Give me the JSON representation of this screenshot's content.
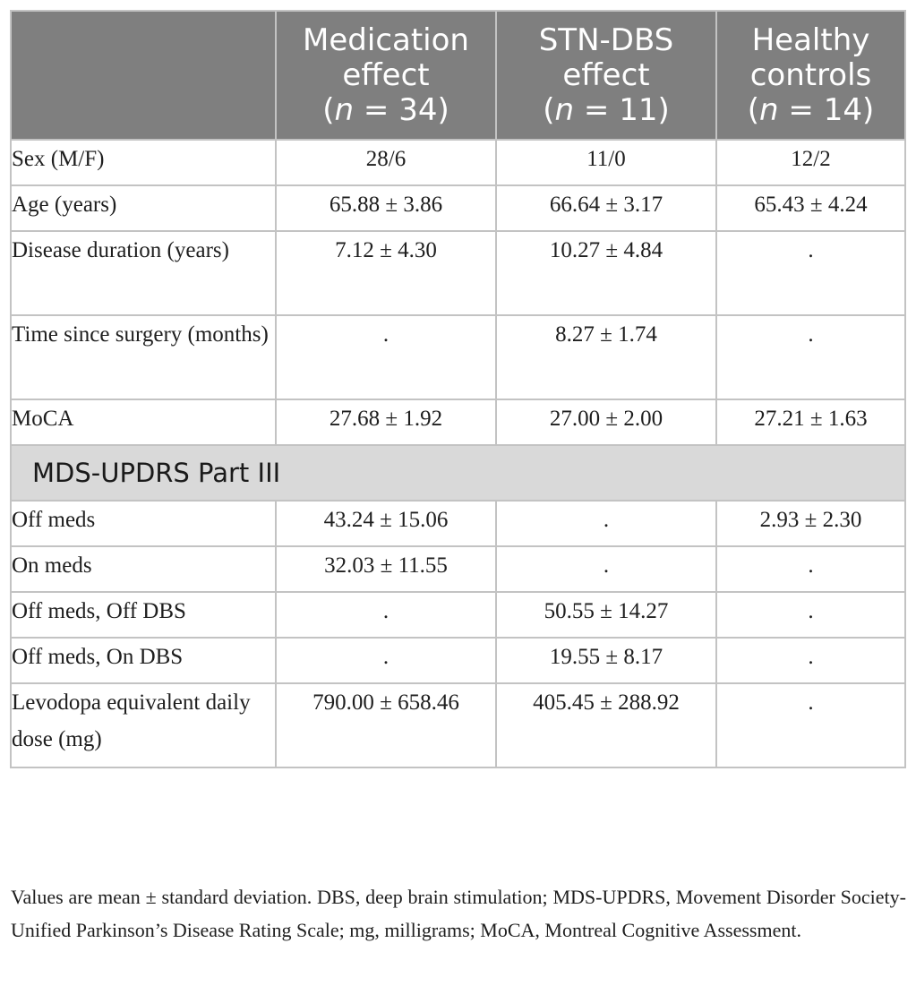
{
  "table": {
    "headers": [
      {
        "line1": "",
        "line2": "",
        "n_italic": "",
        "n_rest": ""
      },
      {
        "line1": "Medication",
        "line2": "effect",
        "n_italic": "n",
        "n_rest": " = 34"
      },
      {
        "line1": "STN-DBS",
        "line2": "effect",
        "n_italic": "n",
        "n_rest": " = 11"
      },
      {
        "line1": "Healthy",
        "line2": "controls",
        "n_italic": "n",
        "n_rest": " = 14"
      }
    ],
    "rows": [
      {
        "label": "Sex (M/F)",
        "values": [
          "28/6",
          "11/0",
          "12/2"
        ]
      },
      {
        "label": "Age (years)",
        "values": [
          "65.88 ± 3.86",
          "66.64 ± 3.17",
          "65.43 ± 4.24"
        ]
      },
      {
        "label": "Disease duration (years)",
        "values": [
          "7.12 ± 4.30",
          "10.27 ± 4.84",
          "."
        ]
      },
      {
        "label": "Time since surgery (months)",
        "values": [
          ".",
          "8.27 ± 1.74",
          "."
        ]
      },
      {
        "label": "MoCA",
        "values": [
          "27.68 ± 1.92",
          "27.00 ± 2.00",
          "27.21 ± 1.63"
        ]
      },
      {
        "section": "MDS-UPDRS Part III"
      },
      {
        "label": "Off meds",
        "values": [
          "43.24 ± 15.06",
          ".",
          "2.93 ± 2.30"
        ]
      },
      {
        "label": "On meds",
        "values": [
          "32.03 ± 11.55",
          ".",
          "."
        ]
      },
      {
        "label": "Off meds, Off DBS",
        "values": [
          ".",
          "50.55 ± 14.27",
          "."
        ]
      },
      {
        "label": "Off meds, On DBS",
        "values": [
          ".",
          "19.55 ± 8.17",
          "."
        ]
      },
      {
        "label": "Levodopa equivalent daily dose (mg)",
        "values": [
          "790.00 ± 658.46",
          "405.45 ± 288.92",
          "."
        ]
      }
    ]
  },
  "footnote": "Values are mean ± standard deviation. DBS, deep brain stimulation; MDS-UPDRS, Movement Disorder Society-Unified Parkinson’s Disease Rating Scale; mg, milligrams; MoCA, Montreal Cognitive Assessment."
}
